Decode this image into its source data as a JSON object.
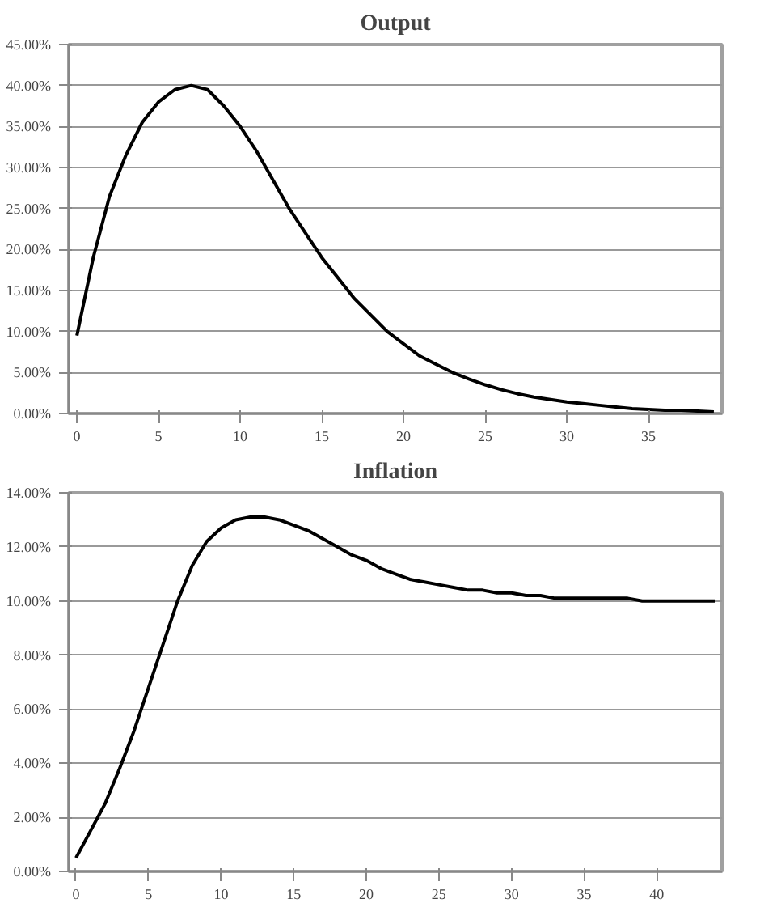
{
  "chart_data": [
    {
      "type": "line",
      "title": "Output",
      "x": [
        0,
        1,
        2,
        3,
        4,
        5,
        6,
        7,
        8,
        9,
        10,
        11,
        12,
        13,
        14,
        15,
        16,
        17,
        18,
        19,
        20,
        21,
        22,
        23,
        24,
        25,
        26,
        27,
        28,
        29,
        30,
        31,
        32,
        33,
        34,
        35,
        36,
        37,
        38,
        39
      ],
      "series": [
        {
          "color": "#000000",
          "values": [
            9.5,
            19,
            26.5,
            31.5,
            35.5,
            38,
            39.5,
            40,
            39.5,
            37.5,
            35,
            32,
            28.5,
            25,
            22,
            19,
            16.5,
            14,
            12,
            10,
            8.5,
            7,
            6,
            5,
            4.2,
            3.5,
            2.9,
            2.4,
            2,
            1.7,
            1.4,
            1.2,
            1,
            0.8,
            0.6,
            0.5,
            0.4,
            0.4,
            0.3,
            0.2
          ]
        }
      ],
      "xlim": [
        -0.5,
        39.5
      ],
      "xticks": [
        0,
        5,
        10,
        15,
        20,
        25,
        30,
        35
      ],
      "ylim": [
        0,
        45
      ],
      "yticks": [
        {
          "value": 0,
          "label": "0.00%"
        },
        {
          "value": 5,
          "label": "5.00%"
        },
        {
          "value": 10,
          "label": "10.00%"
        },
        {
          "value": 15,
          "label": "15.00%"
        },
        {
          "value": 20,
          "label": "20.00%"
        },
        {
          "value": 25,
          "label": "25.00%"
        },
        {
          "value": 30,
          "label": "30.00%"
        },
        {
          "value": 35,
          "label": "35.00%"
        },
        {
          "value": 40,
          "label": "40.00%"
        },
        {
          "value": 45,
          "label": "45.00%"
        }
      ],
      "grid": "y",
      "marker": "none",
      "line_style": "solid"
    },
    {
      "type": "line",
      "title": "Inflation",
      "x": [
        0,
        1,
        2,
        3,
        4,
        5,
        6,
        7,
        8,
        9,
        10,
        11,
        12,
        13,
        14,
        15,
        16,
        17,
        18,
        19,
        20,
        21,
        22,
        23,
        24,
        25,
        26,
        27,
        28,
        29,
        30,
        31,
        32,
        33,
        34,
        35,
        36,
        37,
        38,
        39,
        40,
        41,
        42,
        43,
        44
      ],
      "series": [
        {
          "color": "#000000",
          "values": [
            0.5,
            1.5,
            2.5,
            3.8,
            5.2,
            6.8,
            8.4,
            10,
            11.3,
            12.2,
            12.7,
            13,
            13.1,
            13.1,
            13,
            12.8,
            12.6,
            12.3,
            12,
            11.7,
            11.5,
            11.2,
            11,
            10.8,
            10.7,
            10.6,
            10.5,
            10.4,
            10.4,
            10.3,
            10.3,
            10.2,
            10.2,
            10.1,
            10.1,
            10.1,
            10.1,
            10.1,
            10.1,
            10.0,
            10.0,
            10.0,
            10.0,
            10.0,
            10.0
          ]
        }
      ],
      "xlim": [
        -0.5,
        44.5
      ],
      "xticks": [
        0,
        5,
        10,
        15,
        20,
        25,
        30,
        35,
        40
      ],
      "ylim": [
        0,
        14
      ],
      "yticks": [
        {
          "value": 0,
          "label": "0.00%"
        },
        {
          "value": 2,
          "label": "2.00%"
        },
        {
          "value": 4,
          "label": "4.00%"
        },
        {
          "value": 6,
          "label": "6.00%"
        },
        {
          "value": 8,
          "label": "8.00%"
        },
        {
          "value": 10,
          "label": "10.00%"
        },
        {
          "value": 12,
          "label": "12.00%"
        },
        {
          "value": 14,
          "label": "14.00%"
        }
      ],
      "grid": "y",
      "marker": "none",
      "line_style": "solid"
    }
  ]
}
